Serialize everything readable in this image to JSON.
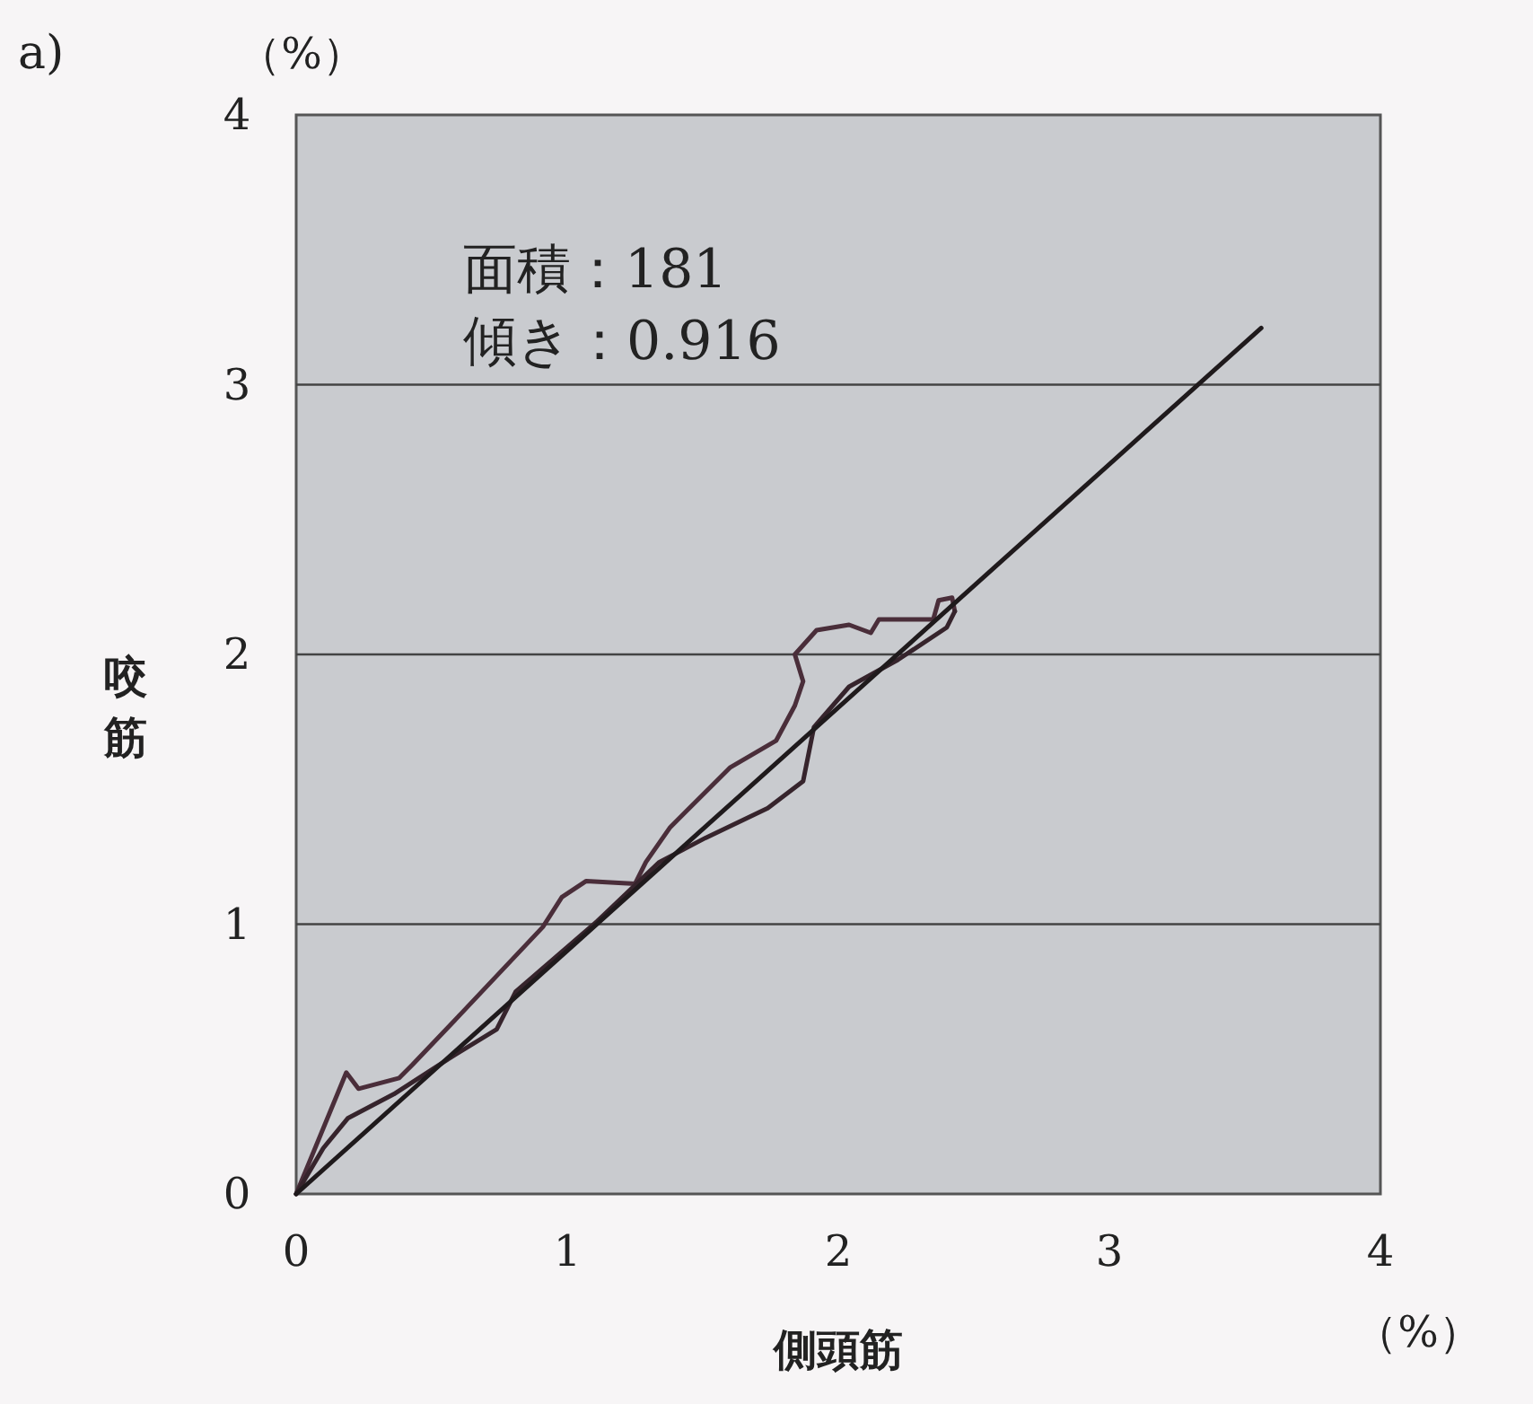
{
  "chart_data": {
    "type": "line",
    "xlabel": "側頭筋",
    "ylabel": "咬筋",
    "annotations": [
      "a)",
      "（%）",
      "（%）",
      "面積：181",
      "傾き：0.916"
    ],
    "xlim": [
      0,
      4
    ],
    "ylim": [
      0,
      4
    ],
    "xticks": [
      0,
      1,
      2,
      3,
      4
    ],
    "yticks": [
      0,
      1,
      2,
      3,
      4
    ],
    "grid": "y",
    "series": [
      {
        "color": "#4a2e3a",
        "x": [
          0,
          0.185,
          0.23,
          0.38,
          0.43,
          0.61,
          0.91,
          0.98,
          1.07,
          1.25,
          1.29,
          1.38,
          1.6,
          1.77,
          1.84,
          1.87,
          1.84,
          1.92,
          2.04,
          2.12,
          2.15,
          2.35,
          2.37,
          2.42,
          2.43
        ],
        "values": [
          0,
          0.45,
          0.39,
          0.43,
          0.48,
          0.67,
          0.99,
          1.1,
          1.16,
          1.15,
          1.23,
          1.36,
          1.58,
          1.68,
          1.81,
          1.9,
          2.0,
          2.09,
          2.11,
          2.08,
          2.13,
          2.13,
          2.2,
          2.21,
          2.16
        ]
      },
      {
        "color": "#36242c",
        "x": [
          2.43,
          2.4,
          2.22,
          2.04,
          1.91,
          1.87,
          1.74,
          1.51,
          1.34,
          1.11,
          0.81,
          0.74,
          0.56,
          0.36,
          0.19,
          0.1,
          0
        ],
        "values": [
          2.16,
          2.1,
          1.98,
          1.88,
          1.73,
          1.53,
          1.43,
          1.32,
          1.23,
          1.01,
          0.75,
          0.61,
          0.5,
          0.37,
          0.28,
          0.17,
          0
        ]
      },
      {
        "color": "#1f1a1c",
        "x": [
          0,
          3.56
        ],
        "values": [
          0,
          3.21
        ]
      }
    ]
  }
}
